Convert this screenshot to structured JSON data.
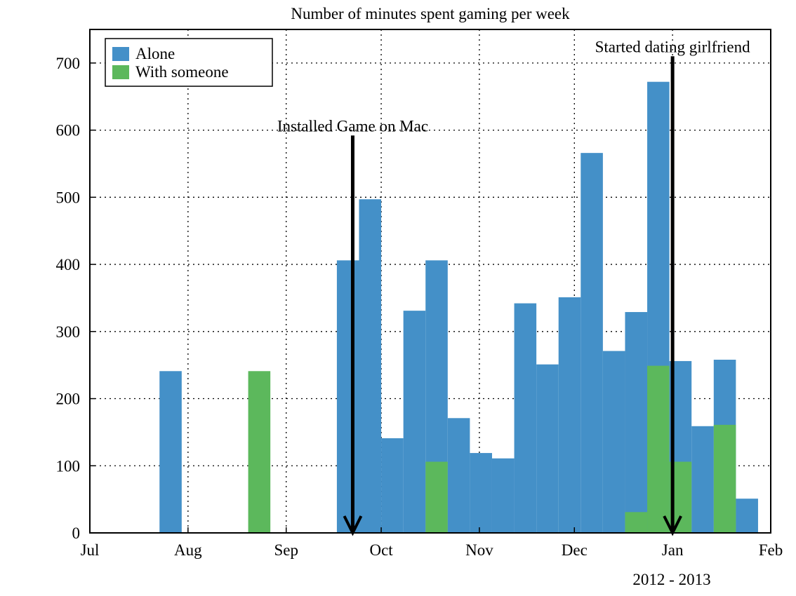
{
  "chart_data": {
    "type": "bar",
    "title": "Number of minutes spent gaming per week",
    "xlabel": "2012 - 2013",
    "ylabel": "",
    "x_axis": {
      "range": [
        "2012-07-01",
        "2013-02-01"
      ],
      "ticks": [
        {
          "label": "Jul",
          "date": "2012-07-01"
        },
        {
          "label": "Aug",
          "date": "2012-08-01"
        },
        {
          "label": "Sep",
          "date": "2012-09-01"
        },
        {
          "label": "Oct",
          "date": "2012-10-01"
        },
        {
          "label": "Nov",
          "date": "2012-11-01"
        },
        {
          "label": "Dec",
          "date": "2012-12-01"
        },
        {
          "label": "Jan",
          "date": "2013-01-01"
        },
        {
          "label": "Feb",
          "date": "2013-02-01"
        }
      ]
    },
    "y_axis": {
      "range": [
        0,
        750
      ],
      "ticks": [
        {
          "label": "0",
          "value": 0
        },
        {
          "label": "100",
          "value": 100
        },
        {
          "label": "200",
          "value": 200
        },
        {
          "label": "300",
          "value": 300
        },
        {
          "label": "400",
          "value": 400
        },
        {
          "label": "500",
          "value": 500
        },
        {
          "label": "600",
          "value": 600
        },
        {
          "label": "700",
          "value": 700
        }
      ]
    },
    "grid": true,
    "legend": {
      "position": "top-left"
    },
    "series": [
      {
        "name": "Alone",
        "color": "#4490c8",
        "bars": [
          {
            "start": "2012-07-23",
            "end": "2012-07-30",
            "value": 241
          },
          {
            "start": "2012-09-17",
            "end": "2012-09-24",
            "value": 406
          },
          {
            "start": "2012-09-24",
            "end": "2012-10-01",
            "value": 497
          },
          {
            "start": "2012-10-01",
            "end": "2012-10-08",
            "value": 141
          },
          {
            "start": "2012-10-08",
            "end": "2012-10-15",
            "value": 331
          },
          {
            "start": "2012-10-15",
            "end": "2012-10-22",
            "value": 406
          },
          {
            "start": "2012-10-22",
            "end": "2012-10-29",
            "value": 171
          },
          {
            "start": "2012-10-29",
            "end": "2012-11-05",
            "value": 119
          },
          {
            "start": "2012-11-05",
            "end": "2012-11-12",
            "value": 111
          },
          {
            "start": "2012-11-12",
            "end": "2012-11-19",
            "value": 342
          },
          {
            "start": "2012-11-19",
            "end": "2012-11-26",
            "value": 251
          },
          {
            "start": "2012-11-26",
            "end": "2012-12-03",
            "value": 351
          },
          {
            "start": "2012-12-03",
            "end": "2012-12-10",
            "value": 566
          },
          {
            "start": "2012-12-10",
            "end": "2012-12-17",
            "value": 271
          },
          {
            "start": "2012-12-17",
            "end": "2012-12-24",
            "value": 329
          },
          {
            "start": "2012-12-24",
            "end": "2012-12-31",
            "value": 672
          },
          {
            "start": "2012-12-31",
            "end": "2013-01-07",
            "value": 256
          },
          {
            "start": "2013-01-07",
            "end": "2013-01-14",
            "value": 159
          },
          {
            "start": "2013-01-14",
            "end": "2013-01-21",
            "value": 258
          },
          {
            "start": "2013-01-21",
            "end": "2013-01-28",
            "value": 51
          }
        ]
      },
      {
        "name": "With someone",
        "color": "#5cb85c",
        "bars": [
          {
            "start": "2012-08-20",
            "end": "2012-08-27",
            "value": 241
          },
          {
            "start": "2012-10-15",
            "end": "2012-10-22",
            "value": 106
          },
          {
            "start": "2012-12-17",
            "end": "2012-12-24",
            "value": 31
          },
          {
            "start": "2012-12-24",
            "end": "2012-12-31",
            "value": 249
          },
          {
            "start": "2012-12-31",
            "end": "2013-01-07",
            "value": 106
          },
          {
            "start": "2013-01-14",
            "end": "2013-01-21",
            "value": 161
          }
        ]
      }
    ],
    "annotations": [
      {
        "text": "Installed Game on Mac",
        "date": "2012-09-22",
        "from_value": 592,
        "to_value": 0
      },
      {
        "text": "Started dating girlfriend",
        "date": "2013-01-01",
        "from_value": 710,
        "to_value": 0
      }
    ]
  }
}
